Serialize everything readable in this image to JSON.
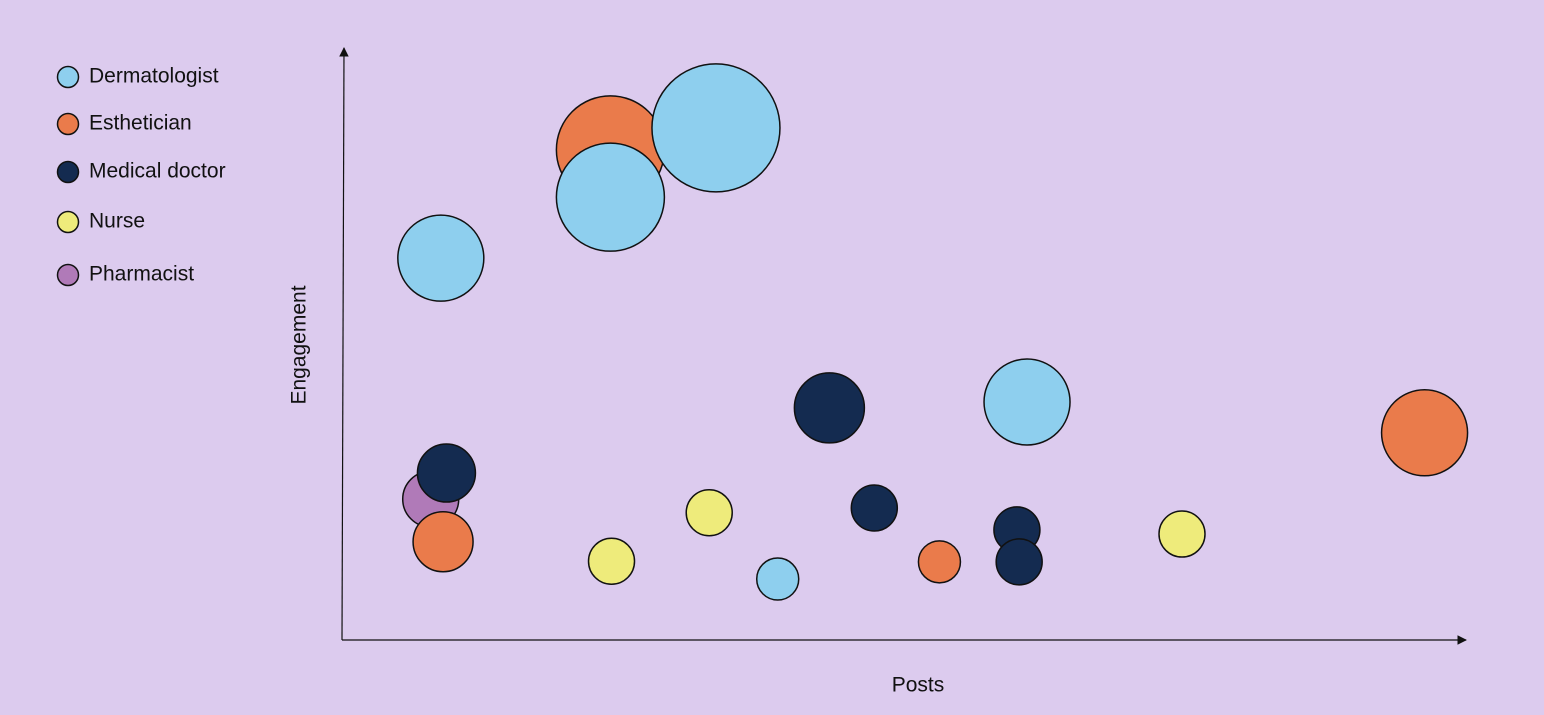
{
  "chart_data": {
    "type": "bubble",
    "x_label": "Posts",
    "y_label": "Engagement",
    "xlim": [
      0,
      100
    ],
    "ylim": [
      0,
      100
    ],
    "series": [
      {
        "name": "Dermatologist",
        "color": "#8ecfee",
        "x": [
          8.8,
          23.9,
          33.3,
          61.0,
          38.8
        ],
        "values": [
          64.5,
          74.8,
          86.5,
          40.2,
          10.3
        ],
        "sizes": [
          43,
          54,
          64,
          43,
          21
        ]
      },
      {
        "name": "Esthetician",
        "color": "#ea7b4b",
        "x": [
          23.9,
          9.0,
          53.2,
          96.4
        ],
        "values": [
          82.8,
          16.6,
          13.2,
          35.0
        ],
        "sizes": [
          54,
          30,
          21,
          43
        ]
      },
      {
        "name": "Medical doctor",
        "color": "#142b50",
        "x": [
          9.3,
          43.4,
          47.4,
          60.1,
          60.3
        ],
        "values": [
          28.2,
          39.2,
          22.3,
          18.6,
          13.2
        ],
        "sizes": [
          29,
          35,
          23,
          23,
          23
        ]
      },
      {
        "name": "Nurse",
        "color": "#eeeb7b",
        "x": [
          24.0,
          32.7,
          74.8
        ],
        "values": [
          13.3,
          21.5,
          17.9
        ],
        "sizes": [
          23,
          23,
          23
        ]
      },
      {
        "name": "Pharmacist",
        "color": "#b07ab8",
        "x": [
          7.9
        ],
        "values": [
          23.8
        ],
        "sizes": [
          28
        ]
      }
    ]
  }
}
